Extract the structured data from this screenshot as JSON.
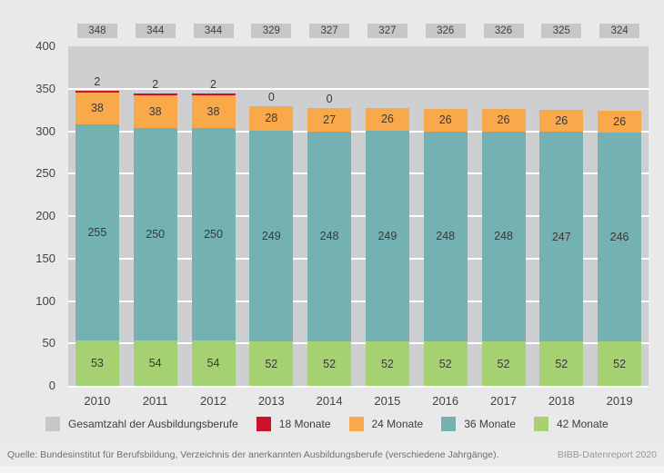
{
  "chart_data": {
    "type": "bar",
    "stacked": true,
    "title": "",
    "xlabel": "",
    "ylabel": "",
    "categories": [
      "2010",
      "2011",
      "2012",
      "2013",
      "2014",
      "2015",
      "2016",
      "2017",
      "2018",
      "2019"
    ],
    "totals": [
      348,
      344,
      344,
      329,
      327,
      327,
      326,
      326,
      325,
      324
    ],
    "series": [
      {
        "name": "42 Monate",
        "key": "42-monate",
        "color": "#a6d173",
        "show_value_labels": true,
        "values": [
          53,
          54,
          54,
          52,
          52,
          52,
          52,
          52,
          52,
          52
        ]
      },
      {
        "name": "36 Monate",
        "key": "36-monate",
        "color": "#73b1b2",
        "show_value_labels": true,
        "values": [
          255,
          250,
          250,
          249,
          248,
          249,
          248,
          248,
          247,
          246
        ]
      },
      {
        "name": "24 Monate",
        "key": "24-monate",
        "color": "#f9a94a",
        "show_value_labels": true,
        "values": [
          38,
          38,
          38,
          28,
          27,
          26,
          26,
          26,
          26,
          26
        ]
      },
      {
        "name": "18 Monate",
        "key": "18-monate",
        "color": "#c9132b",
        "show_value_labels": false,
        "values": [
          2,
          2,
          2,
          0,
          0,
          0,
          0,
          0,
          0,
          0
        ]
      }
    ],
    "top_labels": [
      "2",
      "2",
      "2",
      "0",
      "0",
      "",
      "",
      "",
      "",
      ""
    ],
    "ylim": [
      0,
      400
    ],
    "ytick_step": 50,
    "grid": true,
    "legend_position": "bottom"
  },
  "legend": {
    "items": [
      {
        "label": "Gesamtzahl der Ausbildungsberufe",
        "color": "#c6c7c9"
      },
      {
        "label": "18 Monate",
        "color": "#c9132b"
      },
      {
        "label": "24 Monate",
        "color": "#f9a94a"
      },
      {
        "label": "36 Monate",
        "color": "#73b1b2"
      },
      {
        "label": "42 Monate",
        "color": "#a6d173"
      }
    ]
  },
  "footer": {
    "source": "Quelle: Bundesinstitut für Berufsbildung, Verzeichnis der anerkannten Ausbildungsberufe (verschiedene Jahrgänge).",
    "report": "BIBB-Datenreport 2020"
  },
  "colors": {
    "page_bg": "#e9e9ea",
    "plot_bg": "#cdcfd1",
    "badge_bg": "#c6c7c9",
    "gridline": "#ffffff",
    "text": "#3e3e40"
  }
}
